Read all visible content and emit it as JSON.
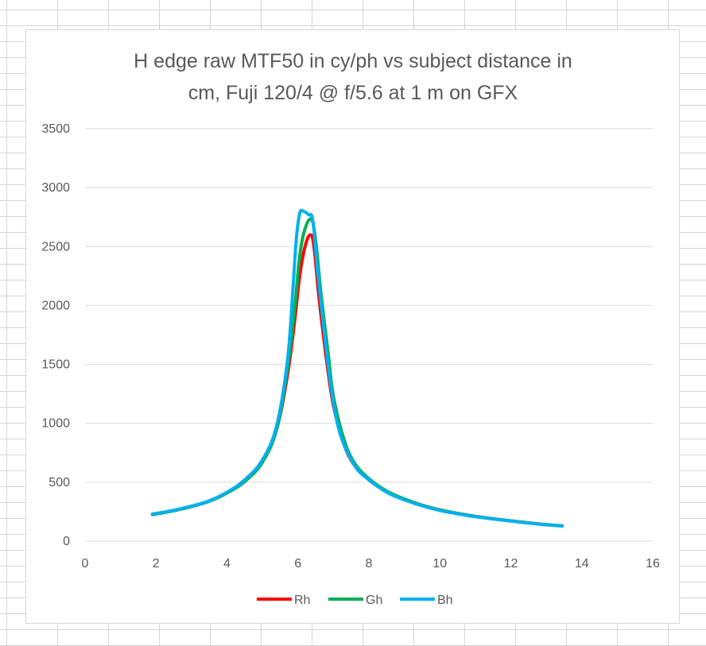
{
  "chart_data": {
    "type": "line",
    "title_lines": [
      "H edge raw MTF50 in cy/ph vs subject distance in",
      "cm, Fuji 120/4 @ f/5.6 at 1 m on GFX"
    ],
    "xlabel": "",
    "ylabel": "",
    "xlim": [
      0,
      16
    ],
    "ylim": [
      0,
      3500
    ],
    "x_ticks": [
      0,
      2,
      4,
      6,
      8,
      10,
      12,
      14,
      16
    ],
    "y_ticks": [
      0,
      500,
      1000,
      1500,
      2000,
      2500,
      3000,
      3500
    ],
    "grid": "horizontal",
    "legend_position": "bottom",
    "series": [
      {
        "name": "Rh",
        "color": "#ff0000",
        "points": [
          [
            1.9,
            225
          ],
          [
            2.5,
            260
          ],
          [
            3,
            295
          ],
          [
            3.5,
            340
          ],
          [
            4,
            410
          ],
          [
            4.5,
            510
          ],
          [
            5,
            680
          ],
          [
            5.4,
            950
          ],
          [
            5.7,
            1400
          ],
          [
            5.9,
            1850
          ],
          [
            6.05,
            2250
          ],
          [
            6.2,
            2500
          ],
          [
            6.35,
            2600
          ],
          [
            6.45,
            2500
          ],
          [
            6.6,
            2050
          ],
          [
            6.8,
            1550
          ],
          [
            7.0,
            1150
          ],
          [
            7.3,
            820
          ],
          [
            7.6,
            640
          ],
          [
            8,
            520
          ],
          [
            8.5,
            420
          ],
          [
            9,
            355
          ],
          [
            9.5,
            305
          ],
          [
            10,
            265
          ],
          [
            10.5,
            235
          ],
          [
            11,
            210
          ],
          [
            11.5,
            190
          ],
          [
            12,
            172
          ],
          [
            12.5,
            155
          ],
          [
            13,
            140
          ],
          [
            13.45,
            130
          ]
        ]
      },
      {
        "name": "Gh",
        "color": "#00b050",
        "points": [
          [
            1.9,
            225
          ],
          [
            2.5,
            258
          ],
          [
            3,
            293
          ],
          [
            3.5,
            338
          ],
          [
            4,
            408
          ],
          [
            4.5,
            505
          ],
          [
            5,
            670
          ],
          [
            5.4,
            950
          ],
          [
            5.7,
            1450
          ],
          [
            5.9,
            1950
          ],
          [
            6.05,
            2420
          ],
          [
            6.2,
            2650
          ],
          [
            6.38,
            2730
          ],
          [
            6.5,
            2550
          ],
          [
            6.65,
            2100
          ],
          [
            6.85,
            1600
          ],
          [
            7.0,
            1230
          ],
          [
            7.3,
            860
          ],
          [
            7.6,
            660
          ],
          [
            8,
            530
          ],
          [
            8.5,
            425
          ],
          [
            9,
            358
          ],
          [
            9.5,
            305
          ],
          [
            10,
            265
          ],
          [
            10.5,
            235
          ],
          [
            11,
            210
          ],
          [
            11.5,
            190
          ],
          [
            12,
            172
          ],
          [
            12.5,
            155
          ],
          [
            13,
            140
          ],
          [
            13.45,
            130
          ]
        ]
      },
      {
        "name": "Bh",
        "color": "#00b0f0",
        "points": [
          [
            1.9,
            230
          ],
          [
            2.5,
            262
          ],
          [
            3,
            297
          ],
          [
            3.5,
            342
          ],
          [
            4,
            415
          ],
          [
            4.5,
            520
          ],
          [
            5,
            690
          ],
          [
            5.4,
            980
          ],
          [
            5.7,
            1520
          ],
          [
            5.85,
            2100
          ],
          [
            5.95,
            2550
          ],
          [
            6.05,
            2780
          ],
          [
            6.15,
            2800
          ],
          [
            6.3,
            2770
          ],
          [
            6.42,
            2720
          ],
          [
            6.55,
            2300
          ],
          [
            6.75,
            1750
          ],
          [
            6.95,
            1270
          ],
          [
            7.2,
            900
          ],
          [
            7.6,
            640
          ],
          [
            8,
            520
          ],
          [
            8.5,
            415
          ],
          [
            9,
            350
          ],
          [
            9.5,
            300
          ],
          [
            10,
            260
          ],
          [
            10.5,
            232
          ],
          [
            11,
            207
          ],
          [
            11.5,
            188
          ],
          [
            12,
            170
          ],
          [
            12.5,
            153
          ],
          [
            13,
            138
          ],
          [
            13.45,
            128
          ]
        ]
      }
    ]
  }
}
